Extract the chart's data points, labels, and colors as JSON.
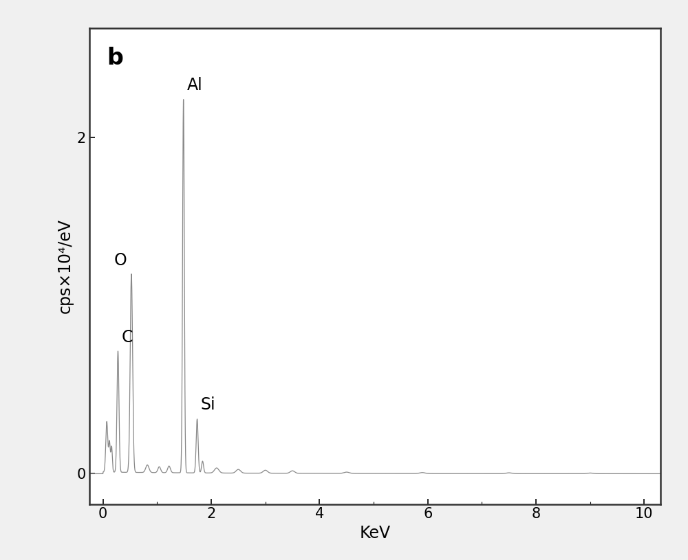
{
  "label": "b",
  "xlabel": "KeV",
  "ylabel": "cps×10⁴/eV",
  "xlim": [
    -0.25,
    10.3
  ],
  "ylim": [
    -0.18,
    2.65
  ],
  "xticks": [
    0,
    2,
    4,
    6,
    8,
    10
  ],
  "yticks": [
    0,
    2
  ],
  "line_color": "#888888",
  "background_color": "#f0f0f0",
  "plot_bg_color": "#ffffff",
  "border_color": "#999999",
  "label_fontsize": 24,
  "axis_fontsize": 17,
  "tick_fontsize": 15,
  "annotation_fontsize": 17,
  "peaks": {
    "C": {
      "keV": 0.277,
      "height": 0.72
    },
    "O": {
      "keV": 0.525,
      "height": 1.18
    },
    "Al": {
      "keV": 1.487,
      "height": 2.22
    },
    "Si": {
      "keV": 1.74,
      "height": 0.32
    }
  }
}
